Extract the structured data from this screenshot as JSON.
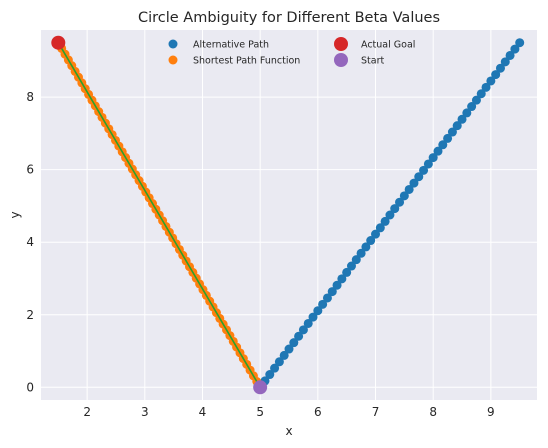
{
  "chart_data": {
    "type": "scatter",
    "title": "Circle Ambiguity for Different Beta Values",
    "xlabel": "x",
    "ylabel": "y",
    "xlim": [
      1.2,
      9.8
    ],
    "ylim": [
      -0.35,
      9.85
    ],
    "xticks": [
      "2",
      "3",
      "4",
      "5",
      "6",
      "7",
      "8",
      "9"
    ],
    "yticks": [
      "0",
      "2",
      "4",
      "6",
      "8"
    ],
    "grid": true,
    "legend_position": "top",
    "series": [
      {
        "name": "Alternative Path",
        "color": "#1f77b4",
        "start": [
          5.0,
          0.0
        ],
        "end": [
          9.5,
          9.5
        ],
        "count": 55
      },
      {
        "name": "Shortest Path Function",
        "color": "#ff7f0e",
        "line_color": "#2ca02c",
        "start": [
          1.5,
          9.5
        ],
        "end": [
          5.0,
          0.0
        ],
        "count": 61
      },
      {
        "name": "Actual Goal",
        "color": "#d62728",
        "point": [
          1.5,
          9.5
        ]
      },
      {
        "name": "Start",
        "color": "#9467bd",
        "point": [
          5.0,
          0.0
        ]
      }
    ]
  }
}
